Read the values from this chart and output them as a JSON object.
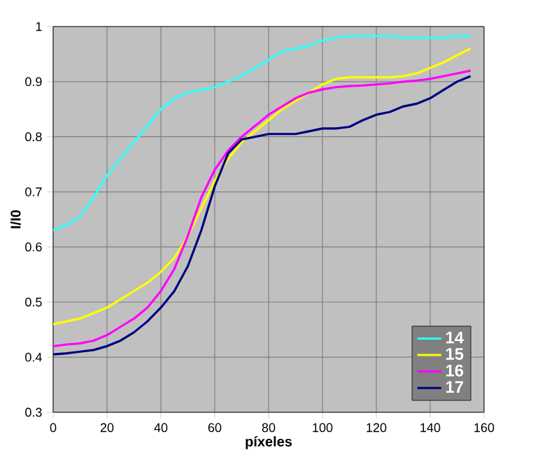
{
  "chart_data": {
    "type": "line",
    "xlabel": "píxeles",
    "ylabel": "I/I0",
    "x": [
      0,
      5,
      10,
      15,
      20,
      25,
      30,
      35,
      40,
      45,
      50,
      55,
      60,
      65,
      70,
      75,
      80,
      85,
      90,
      95,
      100,
      105,
      110,
      115,
      120,
      125,
      130,
      135,
      140,
      145,
      150,
      155
    ],
    "series": [
      {
        "name": "14",
        "color": "#33ffff",
        "values": [
          0.63,
          0.64,
          0.655,
          0.69,
          0.73,
          0.76,
          0.79,
          0.82,
          0.85,
          0.87,
          0.88,
          0.885,
          0.89,
          0.9,
          0.91,
          0.925,
          0.94,
          0.955,
          0.96,
          0.965,
          0.975,
          0.98,
          0.983,
          0.983,
          0.983,
          0.983,
          0.98,
          0.98,
          0.98,
          0.98,
          0.983,
          0.983
        ]
      },
      {
        "name": "15",
        "color": "#ffff00",
        "values": [
          0.46,
          0.465,
          0.47,
          0.48,
          0.49,
          0.505,
          0.52,
          0.535,
          0.555,
          0.58,
          0.62,
          0.67,
          0.72,
          0.76,
          0.79,
          0.81,
          0.83,
          0.85,
          0.865,
          0.88,
          0.895,
          0.905,
          0.908,
          0.908,
          0.908,
          0.908,
          0.91,
          0.915,
          0.925,
          0.935,
          0.948,
          0.96
        ]
      },
      {
        "name": "16",
        "color": "#ff00ff",
        "values": [
          0.42,
          0.423,
          0.425,
          0.43,
          0.44,
          0.455,
          0.47,
          0.49,
          0.52,
          0.56,
          0.62,
          0.69,
          0.74,
          0.775,
          0.8,
          0.82,
          0.84,
          0.855,
          0.87,
          0.88,
          0.886,
          0.89,
          0.892,
          0.893,
          0.895,
          0.897,
          0.9,
          0.902,
          0.905,
          0.91,
          0.915,
          0.92
        ]
      },
      {
        "name": "17",
        "color": "#000080",
        "values": [
          0.405,
          0.407,
          0.41,
          0.413,
          0.42,
          0.43,
          0.445,
          0.465,
          0.49,
          0.52,
          0.565,
          0.63,
          0.71,
          0.77,
          0.795,
          0.8,
          0.805,
          0.805,
          0.805,
          0.81,
          0.815,
          0.815,
          0.818,
          0.83,
          0.84,
          0.845,
          0.855,
          0.86,
          0.87,
          0.885,
          0.9,
          0.91
        ]
      }
    ],
    "xlim": [
      0,
      160
    ],
    "ylim": [
      0.3,
      1
    ],
    "xticks": [
      0,
      20,
      40,
      60,
      80,
      100,
      120,
      140,
      160
    ],
    "yticks": [
      0.3,
      0.4,
      0.5,
      0.6,
      0.7,
      0.8,
      0.9,
      1
    ],
    "grid": true,
    "legend": "bottom right",
    "marker": "none",
    "line_style": "solid"
  }
}
